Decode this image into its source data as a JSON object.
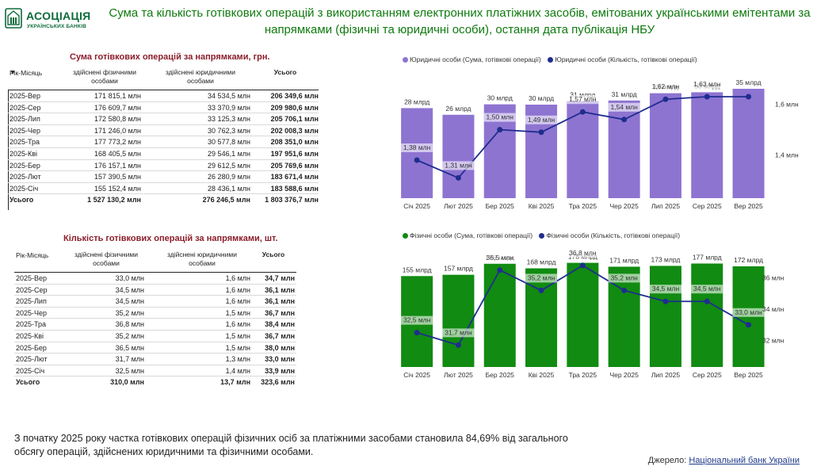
{
  "logo": {
    "name": "АСОЦІАЦІЯ",
    "sub": "УКРАЇНСЬКИХ БАНКІВ"
  },
  "title": "Сума та кількість готівкових  операцій з використанням електронних платіжних засобів, емітованих українськими емітентами за напрямками (фізичні та юридичні особи), остання дата публікація НБУ",
  "colors": {
    "title": "#0e7a0e",
    "table_title": "#8b1e2b",
    "purple": "#8e74d1",
    "green": "#118b11",
    "navy": "#1f2d8f"
  },
  "table_sum": {
    "title": "Сума готівкових операцій за напрямками, грн.",
    "headers": [
      "Рік-Місяць",
      "здійснені фізичними особами",
      "здійснені юридичними особами",
      "Усього"
    ],
    "sort_icon": "sort-down-icon",
    "rows": [
      [
        "2025-Вер",
        "171 815,1 млн",
        "34 534,5 млн",
        "206 349,6 млн"
      ],
      [
        "2025-Сер",
        "176 609,7 млн",
        "33 370,9 млн",
        "209 980,6 млн"
      ],
      [
        "2025-Лип",
        "172 580,8 млн",
        "33 125,3 млн",
        "205 706,1 млн"
      ],
      [
        "2025-Чер",
        "171 246,0 млн",
        "30 762,3 млн",
        "202 008,3 млн"
      ],
      [
        "2025-Тра",
        "177 773,2 млн",
        "30 577,8 млн",
        "208 351,0 млн"
      ],
      [
        "2025-Кві",
        "168 405,5 млн",
        "29 546,1 млн",
        "197 951,6 млн"
      ],
      [
        "2025-Бер",
        "176 157,1 млн",
        "29 612,5 млн",
        "205 769,6 млн"
      ],
      [
        "2025-Лют",
        "157 390,5 млн",
        "26 280,9 млн",
        "183 671,4 млн"
      ],
      [
        "2025-Січ",
        "155 152,4 млн",
        "28 436,1 млн",
        "183 588,6 млн"
      ]
    ],
    "total": [
      "Усього",
      "1 527 130,2 млн",
      "276 246,5 млн",
      "1 803 376,7 млн"
    ]
  },
  "table_count": {
    "title": "Кількість готівкових операцій за напрямками, шт.",
    "headers": [
      "Рік-Місяць",
      "здійснені фізичними особами",
      "здійснені юридичними особами",
      "Усього"
    ],
    "rows": [
      [
        "2025-Вер",
        "33,0 млн",
        "1,6 млн",
        "34,7 млн"
      ],
      [
        "2025-Сер",
        "34,5 млн",
        "1,6 млн",
        "36,1 млн"
      ],
      [
        "2025-Лип",
        "34,5 млн",
        "1,6 млн",
        "36,1 млн"
      ],
      [
        "2025-Чер",
        "35,2 млн",
        "1,5 млн",
        "36,7 млн"
      ],
      [
        "2025-Тра",
        "36,8 млн",
        "1,6 млн",
        "38,4 млн"
      ],
      [
        "2025-Кві",
        "35,2 млн",
        "1,5 млн",
        "36,7 млн"
      ],
      [
        "2025-Бер",
        "36,5 млн",
        "1,5 млн",
        "38,0 млн"
      ],
      [
        "2025-Лют",
        "31,7 млн",
        "1,3 млн",
        "33,0 млн"
      ],
      [
        "2025-Січ",
        "32,5 млн",
        "1,4 млн",
        "33,9 млн"
      ]
    ],
    "total": [
      "Усього",
      "310,0 млн",
      "13,7 млн",
      "323,6 млн"
    ]
  },
  "chart_data": [
    {
      "type": "bar",
      "legend": [
        "Юридичні особи (Сума, готівкові операції)",
        "Юридичні особи (Кількість, готівкові операції)"
      ],
      "categories": [
        "Січ 2025",
        "Лют 2025",
        "Бер 2025",
        "Кві 2025",
        "Тра 2025",
        "Чер 2025",
        "Лип 2025",
        "Сер 2025",
        "Вер 2025"
      ],
      "series": [
        {
          "name": "Юридичні особи (Сума, готівкові операції)",
          "kind": "bar",
          "values": [
            28.4,
            26.3,
            29.6,
            29.5,
            30.6,
            30.8,
            33.1,
            33.4,
            34.5
          ],
          "labels": [
            "28 млрд",
            "26 млрд",
            "30 млрд",
            "30 млрд",
            "31 млрд",
            "31 млрд",
            "33 млрд",
            "33 млрд",
            "35 млрд"
          ]
        },
        {
          "name": "Юридичні особи (Кількість, готівкові операції)",
          "kind": "line",
          "values": [
            1.38,
            1.31,
            1.5,
            1.49,
            1.57,
            1.54,
            1.62,
            1.63,
            1.63
          ],
          "labels": [
            "1,38 млн",
            "1,31 млн",
            "1,50 млн",
            "1,49 млн",
            "1,57 млн",
            "1,54 млн",
            "1,62 млн",
            "1,63 млн",
            ""
          ]
        }
      ],
      "y2_ticks": [
        "1,4 млн",
        "1,6 млн"
      ],
      "y2_tick_values": [
        1.4,
        1.6
      ],
      "y2lim": [
        1.23,
        1.68
      ],
      "ylim": [
        0,
        36
      ]
    },
    {
      "type": "bar",
      "legend": [
        "Фізичні особи (Сума, готівкові операції)",
        "Фізичні особи (Кількість, готівкові операції)"
      ],
      "categories": [
        "Січ 2025",
        "Лют 2025",
        "Бер 2025",
        "Кві 2025",
        "Тра 2025",
        "Чер 2025",
        "Лип 2025",
        "Сер 2025",
        "Вер 2025"
      ],
      "series": [
        {
          "name": "Фізичні особи (Сума, готівкові операції)",
          "kind": "bar",
          "values": [
            155.2,
            157.4,
            176.2,
            168.4,
            177.8,
            171.2,
            172.6,
            176.6,
            171.8
          ],
          "labels": [
            "155 млрд",
            "157 млрд",
            "176 млрд",
            "168 млрд",
            "178 млрд",
            "171 млрд",
            "173 млрд",
            "177 млрд",
            "172 млрд"
          ]
        },
        {
          "name": "Фізичні особи (Кількість, готівкові операції)",
          "kind": "line",
          "values": [
            32.5,
            31.7,
            36.5,
            35.2,
            36.8,
            35.2,
            34.5,
            34.5,
            33.0
          ],
          "labels": [
            "32,5 млн",
            "31,7 млн",
            "36,5 млн",
            "35,2 млн",
            "36,8 млн",
            "35,2 млн",
            "34,5 млн",
            "34,5 млн",
            "33,0 млн"
          ]
        }
      ],
      "y2_ticks": [
        "32 млн",
        "34 млн",
        "36 млн"
      ],
      "y2_tick_values": [
        32,
        34,
        36
      ],
      "y2lim": [
        30.3,
        37.2
      ],
      "ylim": [
        0,
        184
      ]
    }
  ],
  "note": "З початку 2025 року частка готівкових операцій фізичних осіб за платіжними засобами становила 84,69% від загального обсягу операцій, здійснених юридичними та фізичними особами.",
  "source": {
    "label": "Джерело:",
    "link": "Національний банк України"
  }
}
